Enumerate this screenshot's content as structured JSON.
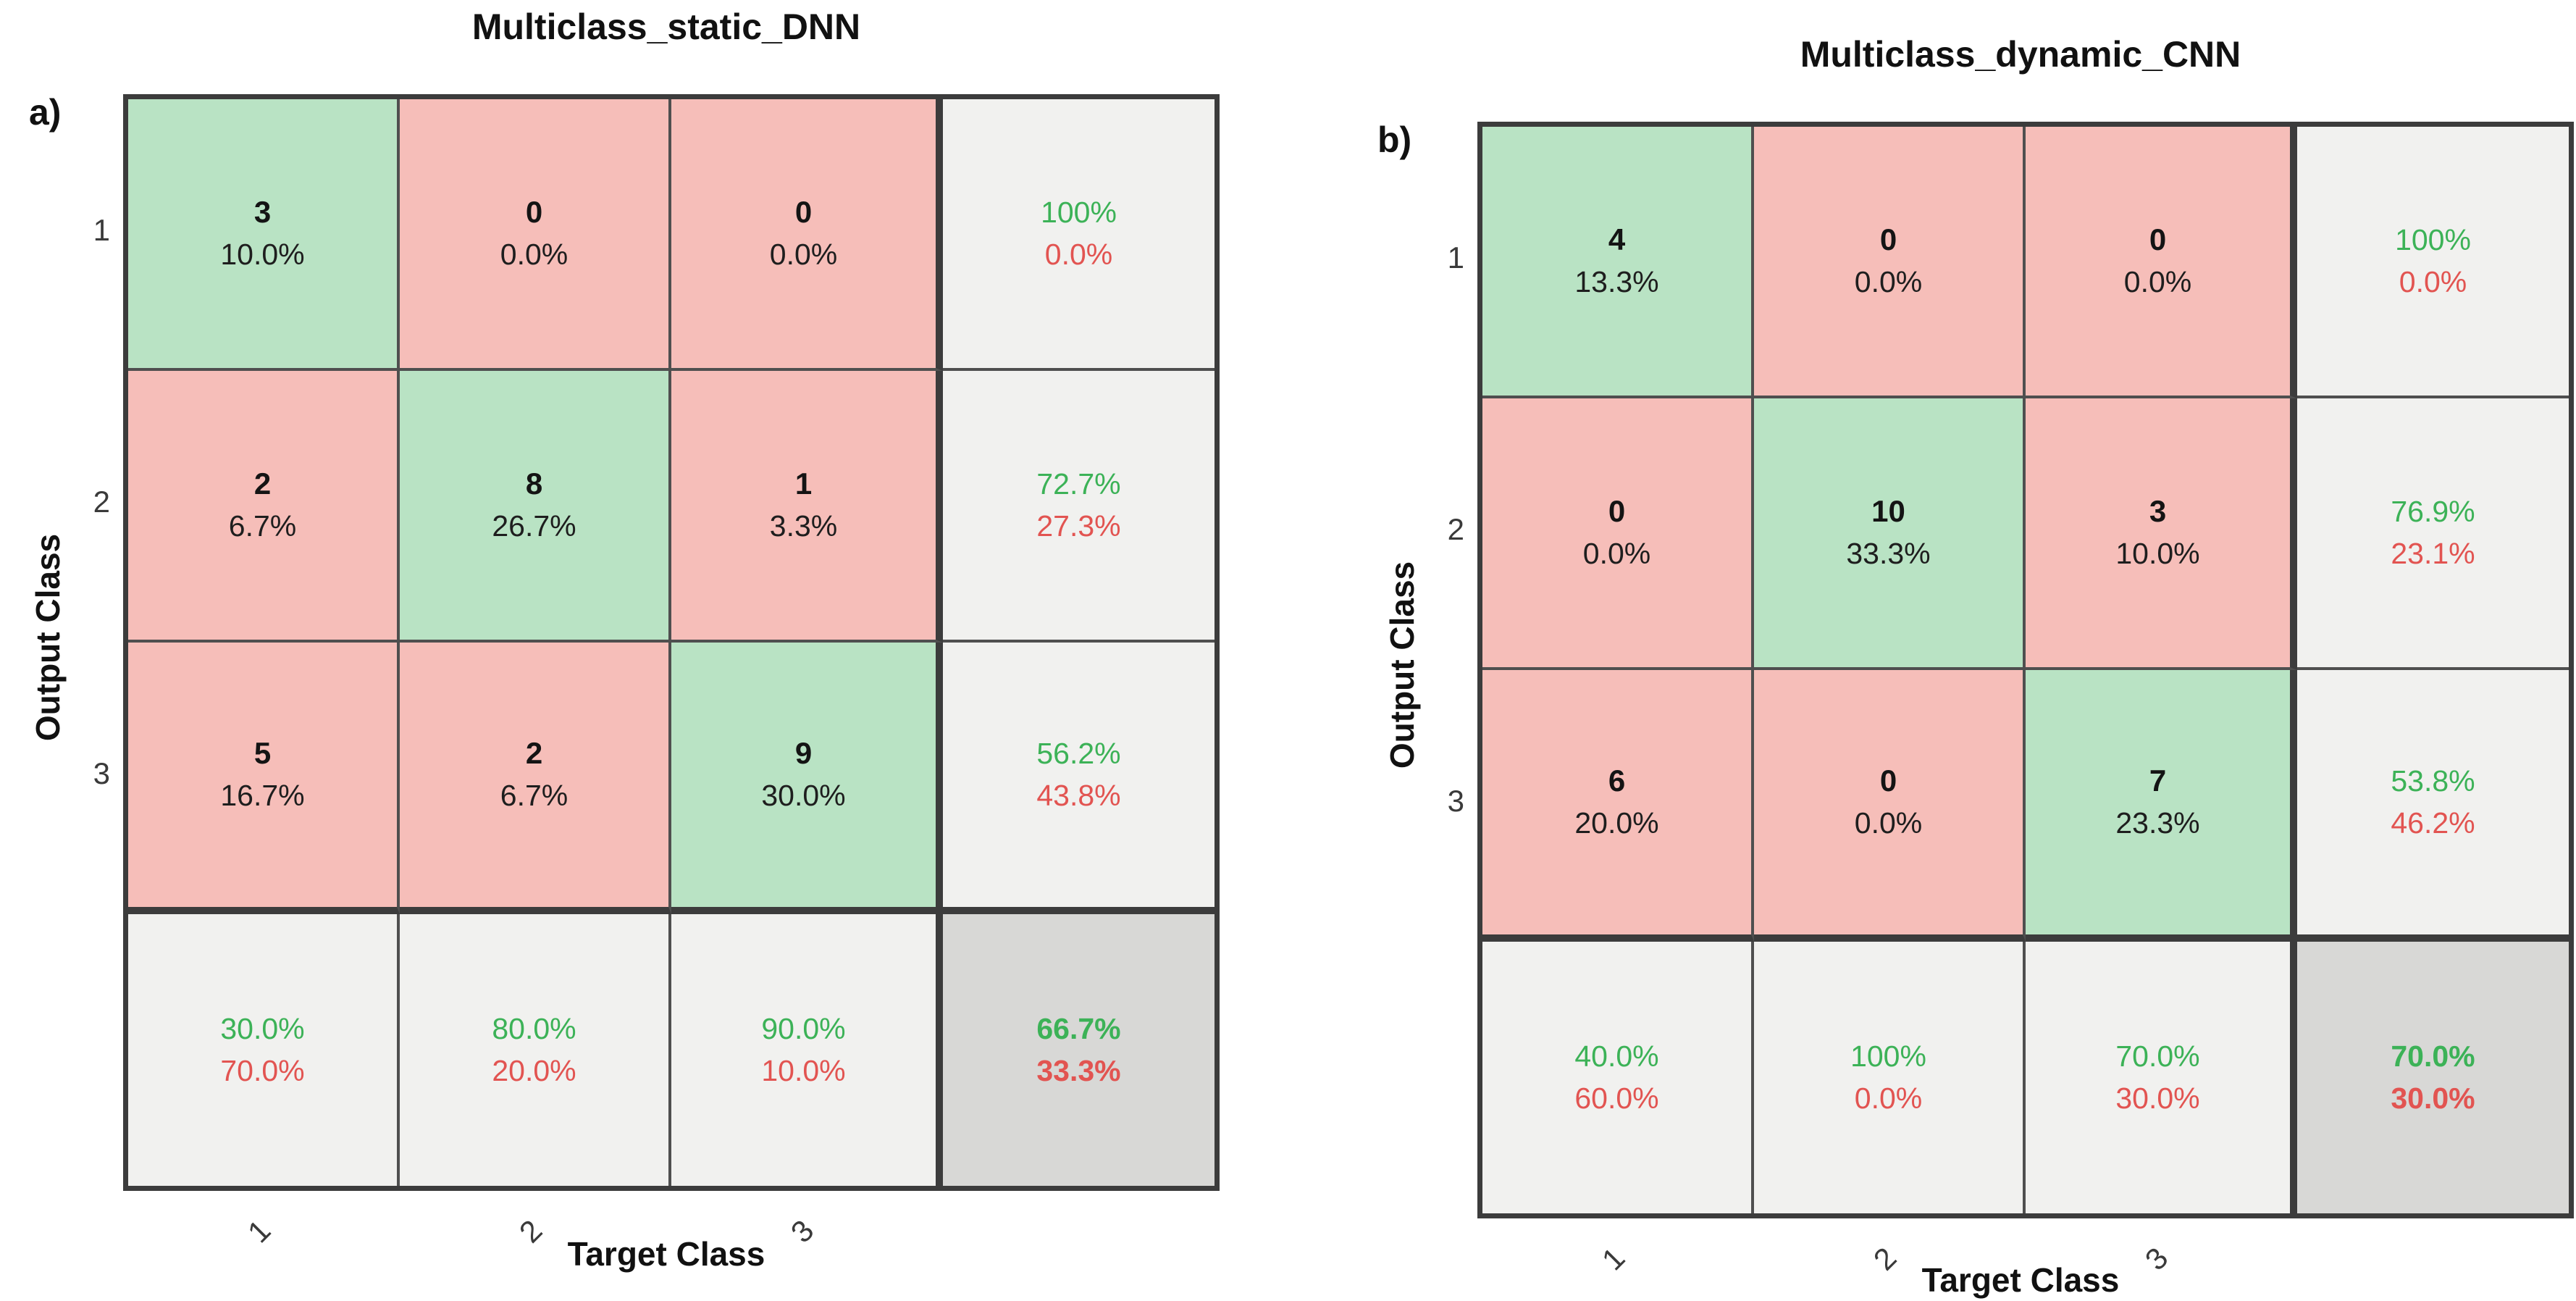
{
  "colors": {
    "correct_cell": "#b9e3c4",
    "incorrect_cell": "#f6beb9",
    "summary_cell": "#f1f1ef",
    "total_cell": "#d8d8d6",
    "correct_text": "#3cb257",
    "error_text": "#e25451",
    "grid_line": "#4f4f4f",
    "grid_line_thick": "#3c3c3c"
  },
  "chart_data": [
    {
      "type": "heatmap",
      "panel_label": "a)",
      "title": "Multiclass_static_DNN",
      "xlabel": "Target Class",
      "ylabel": "Output Class",
      "classes": [
        "1",
        "2",
        "3"
      ],
      "counts": [
        [
          3,
          0,
          0
        ],
        [
          2,
          8,
          1
        ],
        [
          5,
          2,
          9
        ]
      ],
      "cell_pct": [
        [
          "10.0%",
          "0.0%",
          "0.0%"
        ],
        [
          "6.7%",
          "26.7%",
          "3.3%"
        ],
        [
          "16.7%",
          "6.7%",
          "30.0%"
        ]
      ],
      "row_summary": [
        [
          "100%",
          "0.0%"
        ],
        [
          "72.7%",
          "27.3%"
        ],
        [
          "56.2%",
          "43.8%"
        ]
      ],
      "col_summary": [
        [
          "30.0%",
          "70.0%"
        ],
        [
          "80.0%",
          "20.0%"
        ],
        [
          "90.0%",
          "10.0%"
        ]
      ],
      "overall": [
        "66.7%",
        "33.3%"
      ],
      "grid": [
        [
          {
            "l1": "3",
            "l2": "10.0%",
            "kind": "correct"
          },
          {
            "l1": "0",
            "l2": "0.0%",
            "kind": "incorrect"
          },
          {
            "l1": "0",
            "l2": "0.0%",
            "kind": "incorrect"
          },
          {
            "l1": "100%",
            "l2": "0.0%",
            "kind": "summary"
          }
        ],
        [
          {
            "l1": "2",
            "l2": "6.7%",
            "kind": "incorrect"
          },
          {
            "l1": "8",
            "l2": "26.7%",
            "kind": "correct"
          },
          {
            "l1": "1",
            "l2": "3.3%",
            "kind": "incorrect"
          },
          {
            "l1": "72.7%",
            "l2": "27.3%",
            "kind": "summary"
          }
        ],
        [
          {
            "l1": "5",
            "l2": "16.7%",
            "kind": "incorrect"
          },
          {
            "l1": "2",
            "l2": "6.7%",
            "kind": "incorrect"
          },
          {
            "l1": "9",
            "l2": "30.0%",
            "kind": "correct"
          },
          {
            "l1": "56.2%",
            "l2": "43.8%",
            "kind": "summary"
          }
        ],
        [
          {
            "l1": "30.0%",
            "l2": "70.0%",
            "kind": "summary"
          },
          {
            "l1": "80.0%",
            "l2": "20.0%",
            "kind": "summary"
          },
          {
            "l1": "90.0%",
            "l2": "10.0%",
            "kind": "summary"
          },
          {
            "l1": "66.7%",
            "l2": "33.3%",
            "kind": "total"
          }
        ]
      ]
    },
    {
      "type": "heatmap",
      "panel_label": "b)",
      "title": "Multiclass_dynamic_CNN",
      "xlabel": "Target Class",
      "ylabel": "Output Class",
      "classes": [
        "1",
        "2",
        "3"
      ],
      "counts": [
        [
          4,
          0,
          0
        ],
        [
          0,
          10,
          3
        ],
        [
          6,
          0,
          7
        ]
      ],
      "cell_pct": [
        [
          "13.3%",
          "0.0%",
          "0.0%"
        ],
        [
          "0.0%",
          "33.3%",
          "10.0%"
        ],
        [
          "20.0%",
          "0.0%",
          "23.3%"
        ]
      ],
      "row_summary": [
        [
          "100%",
          "0.0%"
        ],
        [
          "76.9%",
          "23.1%"
        ],
        [
          "53.8%",
          "46.2%"
        ]
      ],
      "col_summary": [
        [
          "40.0%",
          "60.0%"
        ],
        [
          "100%",
          "0.0%"
        ],
        [
          "70.0%",
          "30.0%"
        ]
      ],
      "overall": [
        "70.0%",
        "30.0%"
      ],
      "grid": [
        [
          {
            "l1": "4",
            "l2": "13.3%",
            "kind": "correct"
          },
          {
            "l1": "0",
            "l2": "0.0%",
            "kind": "incorrect"
          },
          {
            "l1": "0",
            "l2": "0.0%",
            "kind": "incorrect"
          },
          {
            "l1": "100%",
            "l2": "0.0%",
            "kind": "summary"
          }
        ],
        [
          {
            "l1": "0",
            "l2": "0.0%",
            "kind": "incorrect"
          },
          {
            "l1": "10",
            "l2": "33.3%",
            "kind": "correct"
          },
          {
            "l1": "3",
            "l2": "10.0%",
            "kind": "incorrect"
          },
          {
            "l1": "76.9%",
            "l2": "23.1%",
            "kind": "summary"
          }
        ],
        [
          {
            "l1": "6",
            "l2": "20.0%",
            "kind": "incorrect"
          },
          {
            "l1": "0",
            "l2": "0.0%",
            "kind": "incorrect"
          },
          {
            "l1": "7",
            "l2": "23.3%",
            "kind": "correct"
          },
          {
            "l1": "53.8%",
            "l2": "46.2%",
            "kind": "summary"
          }
        ],
        [
          {
            "l1": "40.0%",
            "l2": "60.0%",
            "kind": "summary"
          },
          {
            "l1": "100%",
            "l2": "0.0%",
            "kind": "summary"
          },
          {
            "l1": "70.0%",
            "l2": "30.0%",
            "kind": "summary"
          },
          {
            "l1": "70.0%",
            "l2": "30.0%",
            "kind": "total"
          }
        ]
      ]
    }
  ]
}
